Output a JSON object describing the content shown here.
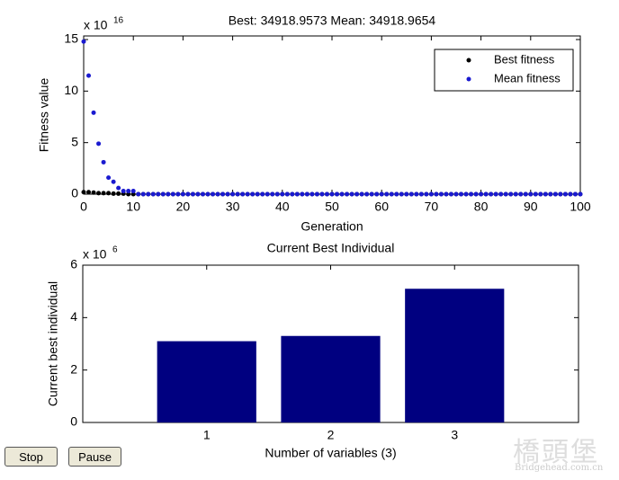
{
  "chart_data": [
    {
      "type": "scatter",
      "title": "Best: 34918.9573 Mean: 34918.9654",
      "xlabel": "Generation",
      "ylabel": "Fitness value",
      "y_multiplier": {
        "base": "x 10",
        "exponent": "16"
      },
      "x": [
        0,
        1,
        2,
        3,
        4,
        5,
        6,
        7,
        8,
        9,
        10,
        11,
        12,
        13,
        14,
        15,
        16,
        17,
        18,
        19,
        20,
        21,
        22,
        23,
        24,
        25,
        26,
        27,
        28,
        29,
        30,
        31,
        32,
        33,
        34,
        35,
        36,
        37,
        38,
        39,
        40,
        41,
        42,
        43,
        44,
        45,
        46,
        47,
        48,
        49,
        50,
        51,
        52,
        53,
        54,
        55,
        56,
        57,
        58,
        59,
        60,
        61,
        62,
        63,
        64,
        65,
        66,
        67,
        68,
        69,
        70,
        71,
        72,
        73,
        74,
        75,
        76,
        77,
        78,
        79,
        80,
        81,
        82,
        83,
        84,
        85,
        86,
        87,
        88,
        89,
        90,
        91,
        92,
        93,
        94,
        95,
        96,
        97,
        98,
        99,
        100
      ],
      "series": [
        {
          "name": "Best fitness",
          "color": "#000000",
          "values": [
            0.2,
            0.2,
            0.15,
            0.1,
            0.1,
            0.1,
            0.05,
            0.05,
            0.05,
            0,
            0,
            0,
            0,
            0,
            0,
            0,
            0,
            0,
            0,
            0,
            0,
            0,
            0,
            0,
            0,
            0,
            0,
            0,
            0,
            0,
            0,
            0,
            0,
            0,
            0,
            0,
            0,
            0,
            0,
            0,
            0,
            0,
            0,
            0,
            0,
            0,
            0,
            0,
            0,
            0,
            0,
            0,
            0,
            0,
            0,
            0,
            0,
            0,
            0,
            0,
            0,
            0,
            0,
            0,
            0,
            0,
            0,
            0,
            0,
            0,
            0,
            0,
            0,
            0,
            0,
            0,
            0,
            0,
            0,
            0,
            0,
            0,
            0,
            0,
            0,
            0,
            0,
            0,
            0,
            0,
            0,
            0,
            0,
            0,
            0,
            0,
            0,
            0,
            0,
            0,
            0
          ]
        },
        {
          "name": "Mean fitness",
          "color": "#1a1ad0",
          "values": [
            14.8,
            11.5,
            7.9,
            4.9,
            3.1,
            1.6,
            1.2,
            0.6,
            0.3,
            0.3,
            0.3,
            0,
            0,
            0,
            0,
            0,
            0,
            0,
            0,
            0,
            0,
            0,
            0,
            0,
            0,
            0,
            0,
            0,
            0,
            0,
            0,
            0,
            0,
            0,
            0,
            0,
            0,
            0,
            0,
            0,
            0,
            0,
            0,
            0,
            0,
            0,
            0,
            0,
            0,
            0,
            0,
            0,
            0,
            0,
            0,
            0,
            0,
            0,
            0,
            0,
            0,
            0,
            0,
            0,
            0,
            0,
            0,
            0,
            0,
            0,
            0,
            0,
            0,
            0,
            0,
            0,
            0,
            0,
            0,
            0,
            0,
            0,
            0,
            0,
            0,
            0,
            0,
            0,
            0,
            0,
            0,
            0,
            0,
            0,
            0,
            0,
            0,
            0,
            0,
            0,
            0
          ]
        }
      ],
      "xlim": [
        0,
        100
      ],
      "xticks": [
        0,
        10,
        20,
        30,
        40,
        50,
        60,
        70,
        80,
        90,
        100
      ],
      "ylim": [
        0,
        15
      ],
      "yticks": [
        0,
        5,
        10,
        15
      ],
      "legend": "upper right"
    },
    {
      "type": "bar",
      "title": "Current Best Individual",
      "xlabel": "Number of variables (3)",
      "ylabel": "Current best individual",
      "y_multiplier": {
        "base": "x 10",
        "exponent": "6"
      },
      "x": [
        1,
        2,
        3
      ],
      "values": [
        3.1,
        3.3,
        5.1
      ],
      "color": "#000080",
      "xlim": [
        0,
        4
      ],
      "xticks": [
        1,
        2,
        3
      ],
      "ylim": [
        0,
        6
      ],
      "yticks": [
        0,
        2,
        4,
        6
      ]
    }
  ],
  "buttons": [
    "Stop",
    "Pause"
  ],
  "watermark": {
    "main": "橋頭堡",
    "site": "Bridgehead.com.cn"
  }
}
